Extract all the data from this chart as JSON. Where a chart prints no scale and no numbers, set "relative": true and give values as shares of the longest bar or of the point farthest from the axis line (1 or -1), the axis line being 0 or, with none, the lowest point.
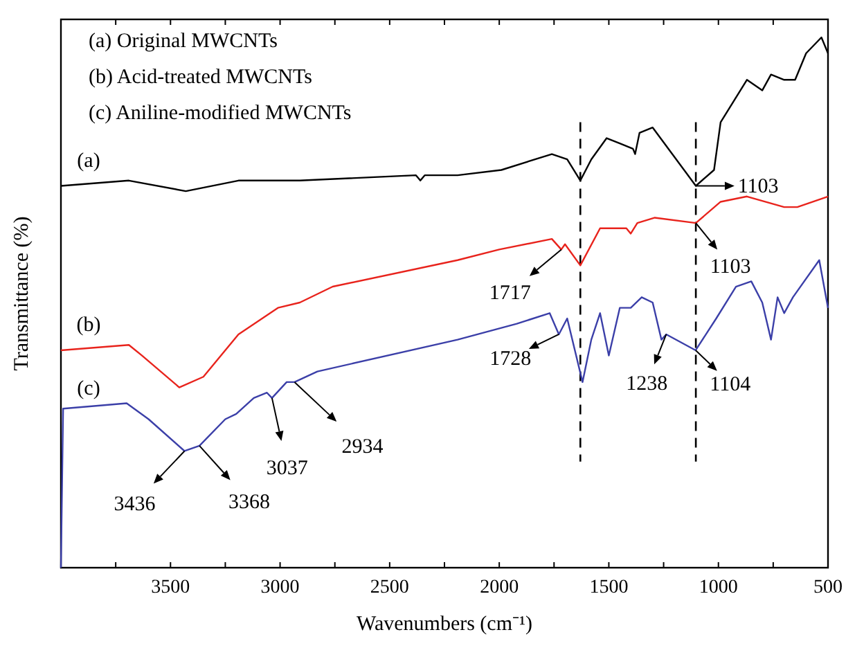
{
  "chart_data": {
    "type": "line",
    "relative": true,
    "xlabel": "Wavenumbers (cm⁻¹)",
    "ylabel": "Transmittance (%)",
    "xlim": [
      4000,
      500
    ],
    "xticks": [
      {
        "value": 3750,
        "label": null
      },
      3500,
      {
        "value": 3250,
        "label": null
      },
      3000,
      {
        "value": 2750,
        "label": null
      },
      2500,
      {
        "value": 2250,
        "label": null
      },
      2000,
      {
        "value": 1750,
        "label": null
      },
      1500,
      {
        "value": 1250,
        "label": null
      },
      1000,
      {
        "value": 750,
        "label": null
      },
      500
    ],
    "tick_labels": "x",
    "grid": false,
    "line_style": "solid",
    "series": [
      {
        "name": "(a)",
        "color": "#000000",
        "x": [
          4000,
          3690,
          3430,
          3190,
          2910,
          2380,
          2360,
          2340,
          2190,
          1990,
          1760,
          1690,
          1630,
          1580,
          1510,
          1450,
          1390,
          1380,
          1360,
          1300,
          1103,
          1020,
          990,
          870,
          800,
          760,
          700,
          650,
          600,
          530,
          500
        ],
        "values": [
          0.72,
          0.73,
          0.71,
          0.73,
          0.73,
          0.74,
          0.73,
          0.74,
          0.74,
          0.75,
          0.78,
          0.77,
          0.73,
          0.77,
          0.81,
          0.8,
          0.79,
          0.78,
          0.82,
          0.83,
          0.72,
          0.75,
          0.84,
          0.92,
          0.9,
          0.93,
          0.92,
          0.92,
          0.97,
          1.0,
          0.97
        ]
      },
      {
        "name": "(b)",
        "color": "#e8231c",
        "x": [
          4000,
          3690,
          3630,
          3460,
          3350,
          3190,
          3010,
          2910,
          2760,
          2190,
          2000,
          1760,
          1717,
          1700,
          1630,
          1540,
          1480,
          1420,
          1400,
          1370,
          1290,
          1103,
          990,
          870,
          700,
          640,
          500
        ],
        "values": [
          0.41,
          0.42,
          0.4,
          0.34,
          0.36,
          0.44,
          0.49,
          0.5,
          0.53,
          0.58,
          0.6,
          0.62,
          0.6,
          0.61,
          0.57,
          0.64,
          0.64,
          0.64,
          0.63,
          0.65,
          0.66,
          0.65,
          0.69,
          0.7,
          0.68,
          0.68,
          0.7
        ]
      },
      {
        "name": "(c)",
        "color": "#3b3fa8",
        "x": [
          4000,
          3990,
          3700,
          3600,
          3436,
          3368,
          3250,
          3200,
          3120,
          3060,
          3037,
          2970,
          2934,
          2830,
          2190,
          1920,
          1770,
          1728,
          1690,
          1620,
          1580,
          1540,
          1500,
          1450,
          1400,
          1350,
          1300,
          1260,
          1238,
          1104,
          1010,
          920,
          850,
          800,
          760,
          730,
          700,
          660,
          540,
          500
        ],
        "values": [
          0,
          0.3,
          0.31,
          0.28,
          0.22,
          0.23,
          0.28,
          0.29,
          0.32,
          0.33,
          0.32,
          0.35,
          0.35,
          0.37,
          0.43,
          0.46,
          0.48,
          0.44,
          0.47,
          0.35,
          0.43,
          0.48,
          0.4,
          0.49,
          0.49,
          0.51,
          0.5,
          0.43,
          0.44,
          0.41,
          0.47,
          0.53,
          0.54,
          0.5,
          0.43,
          0.51,
          0.48,
          0.51,
          0.58,
          0.49
        ]
      }
    ],
    "ref_lines": [
      {
        "axis": "x",
        "value": 1630,
        "line_style": "dashed",
        "color": "#000000"
      },
      {
        "axis": "x",
        "value": 1103,
        "line_style": "dashed",
        "color": "#000000"
      }
    ],
    "annotations": [
      "(a) Original MWCNTs",
      "(b) Acid-treated MWCNTs",
      "(c) Aniline-modified MWCNTs",
      {
        "text": "1103",
        "x": 1103,
        "y": 0.72
      },
      {
        "text": "1717",
        "x": 1717,
        "y": 0.6
      },
      {
        "text": "1103",
        "x": 1103,
        "y": 0.65
      },
      {
        "text": "1728",
        "x": 1728,
        "y": 0.44
      },
      {
        "text": "1238",
        "x": 1238,
        "y": 0.44
      },
      {
        "text": "1104",
        "x": 1104,
        "y": 0.41
      },
      {
        "text": "3436",
        "x": 3436,
        "y": 0.22
      },
      {
        "text": "3368",
        "x": 3368,
        "y": 0.23
      },
      {
        "text": "3037",
        "x": 3037,
        "y": 0.32
      },
      {
        "text": "2934",
        "x": 2934,
        "y": 0.35
      }
    ]
  }
}
